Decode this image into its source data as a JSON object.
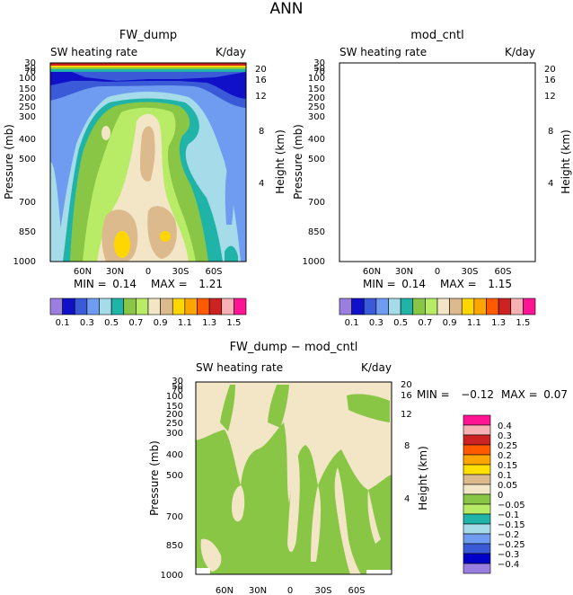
{
  "title": "ANN",
  "colors": {
    "ctrl_levels": [
      "#9a7ee0",
      "#1010c8",
      "#3a5ad8",
      "#6f9cf0",
      "#a6dbea",
      "#20b4a8",
      "#8ac646",
      "#b8ec66",
      "#f2e6c6",
      "#dcba8e",
      "#ffd700",
      "#ffa500",
      "#ff5a00",
      "#cc2222",
      "#f7b0b4",
      "#ff1493"
    ],
    "diff_levels": [
      "#9a7ee0",
      "#0000c8",
      "#3a5ad8",
      "#6f9cf0",
      "#a6dbea",
      "#20b4a8",
      "#b8ec66",
      "#8ac646",
      "#f2e6c6",
      "#dcba8e",
      "#ffe000",
      "#ffa500",
      "#ff5a00",
      "#cc2222",
      "#f7b0b4",
      "#ff1493"
    ]
  },
  "panels": [
    {
      "name": "FW_dump",
      "subtitle_left": "SW heating rate",
      "subtitle_right": "K/day",
      "min_label": "MIN =",
      "min_value": "0.14",
      "max_label": "MAX =",
      "max_value": "1.21"
    },
    {
      "name": "mod_cntl",
      "subtitle_left": "SW heating rate",
      "subtitle_right": "K/day",
      "min_label": "MIN =",
      "min_value": "0.14",
      "max_label": "MAX =",
      "max_value": "1.15"
    },
    {
      "name": "FW_dump − mod_cntl",
      "subtitle_left": "SW heating rate",
      "subtitle_right": "K/day",
      "min_label": "MIN =",
      "min_value": "−0.12",
      "max_label": "MAX =",
      "max_value": "0.07"
    }
  ],
  "chart_data": [
    {
      "type": "heatmap",
      "title": "FW_dump",
      "xlabel": "",
      "ylabel": "Pressure (mb)",
      "ylabel_right": "Height (km)",
      "x_ticks": [
        "60N",
        "30N",
        "0",
        "30S",
        "60S"
      ],
      "y_ticks": [
        "30",
        "50",
        "70",
        "100",
        "150",
        "200",
        "250",
        "300",
        "400",
        "500",
        "700",
        "850",
        "1000"
      ],
      "height_ticks": [
        "20",
        "16",
        "12",
        "8",
        "4"
      ],
      "colorbar_labels": [
        "0.1",
        "0.3",
        "0.5",
        "0.7",
        "0.9",
        "1.1",
        "1.3",
        "1.5"
      ],
      "min": 0.14,
      "max": 1.21
    },
    {
      "type": "heatmap",
      "title": "mod_cntl",
      "xlabel": "",
      "ylabel": "Pressure (mb)",
      "ylabel_right": "Height (km)",
      "x_ticks": [
        "60N",
        "30N",
        "0",
        "30S",
        "60S"
      ],
      "y_ticks": [
        "30",
        "50",
        "70",
        "100",
        "150",
        "200",
        "250",
        "300",
        "400",
        "500",
        "700",
        "850",
        "1000"
      ],
      "height_ticks": [
        "20",
        "16",
        "12",
        "8",
        "4"
      ],
      "colorbar_labels": [
        "0.1",
        "0.3",
        "0.5",
        "0.7",
        "0.9",
        "1.1",
        "1.3",
        "1.5"
      ],
      "min": 0.14,
      "max": 1.15
    },
    {
      "type": "heatmap",
      "title": "FW_dump − mod_cntl",
      "xlabel": "",
      "ylabel": "Pressure (mb)",
      "ylabel_right": "Height (km)",
      "x_ticks": [
        "60N",
        "30N",
        "0",
        "30S",
        "60S"
      ],
      "y_ticks": [
        "30",
        "50",
        "70",
        "100",
        "150",
        "200",
        "250",
        "300",
        "400",
        "500",
        "700",
        "850",
        "1000"
      ],
      "height_ticks": [
        "20",
        "16",
        "12",
        "8",
        "4"
      ],
      "colorbar_labels": [
        "0.4",
        "0.3",
        "0.25",
        "0.2",
        "0.15",
        "0.1",
        "0.05",
        "0",
        "−0.05",
        "−0.1",
        "−0.15",
        "−0.2",
        "−0.25",
        "−0.3",
        "−0.4"
      ],
      "min": -0.12,
      "max": 0.07
    }
  ]
}
